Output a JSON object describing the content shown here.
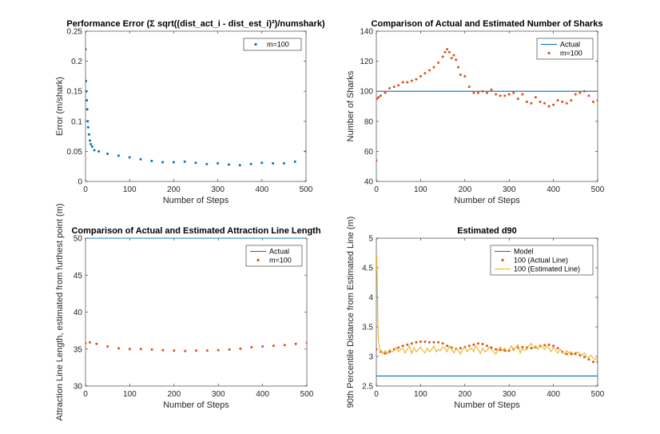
{
  "chart_data": [
    {
      "type": "scatter",
      "title": "Performance Error (Σ sqrt((dist_act_i - dist_est_i)²)/numshark)",
      "xlabel": "Number of Steps",
      "ylabel": "Error (m/shark)",
      "xlim": [
        0,
        500
      ],
      "ylim": [
        0,
        0.25
      ],
      "xticks": [
        "0",
        "100",
        "200",
        "300",
        "400",
        "500"
      ],
      "yticks": [
        "0",
        "0.05",
        "0.1",
        "0.15",
        "0.2",
        "0.25"
      ],
      "grid": false,
      "legend_location": "top-right",
      "series": [
        {
          "name": "m=100",
          "color": "#0072BD",
          "marker": "dot",
          "x": [
            0,
            1,
            2,
            3,
            4,
            5,
            6,
            8,
            10,
            12,
            15,
            20,
            30,
            50,
            75,
            100,
            125,
            150,
            175,
            200,
            225,
            250,
            275,
            300,
            325,
            350,
            375,
            400,
            425,
            450,
            475,
            500
          ],
          "y": [
            0.22,
            0.167,
            0.15,
            0.135,
            0.12,
            0.1,
            0.09,
            0.078,
            0.068,
            0.062,
            0.058,
            0.052,
            0.05,
            0.046,
            0.043,
            0.04,
            0.037,
            0.034,
            0.032,
            0.032,
            0.033,
            0.031,
            0.029,
            0.03,
            0.028,
            0.027,
            0.029,
            0.031,
            0.03,
            0.03,
            0.033,
            0.05
          ]
        }
      ]
    },
    {
      "type": "scatter",
      "title": "Comparison of Actual and Estimated Number of Sharks",
      "xlabel": "Number of Steps",
      "ylabel": "Number of Sharks",
      "xlim": [
        0,
        500
      ],
      "ylim": [
        40,
        140
      ],
      "xticks": [
        "0",
        "100",
        "200",
        "300",
        "400",
        "500"
      ],
      "yticks": [
        "40",
        "60",
        "80",
        "100",
        "120",
        "140"
      ],
      "grid": false,
      "legend_location": "top-right",
      "series": [
        {
          "name": "Actual",
          "color": "#0072BD",
          "style": "line",
          "x": [
            0,
            500
          ],
          "y": [
            100,
            100
          ]
        },
        {
          "name": "m=100",
          "color": "#D95319",
          "marker": "dot",
          "x": [
            0,
            1,
            5,
            10,
            20,
            30,
            40,
            50,
            60,
            70,
            80,
            90,
            100,
            110,
            120,
            130,
            140,
            150,
            155,
            160,
            165,
            170,
            175,
            180,
            185,
            190,
            200,
            210,
            220,
            230,
            240,
            250,
            260,
            270,
            280,
            290,
            300,
            310,
            320,
            330,
            340,
            350,
            360,
            370,
            380,
            390,
            400,
            410,
            420,
            430,
            440,
            450,
            460,
            470,
            480,
            490,
            500
          ],
          "y": [
            54,
            95,
            96,
            97,
            99,
            102,
            103,
            104,
            106,
            106,
            107,
            108,
            110,
            112,
            114,
            116,
            119,
            123,
            126,
            128,
            126,
            122,
            124,
            121,
            116,
            111,
            110,
            103,
            99,
            99,
            100,
            99,
            101,
            98,
            97,
            97,
            98,
            99,
            95,
            98,
            93,
            92,
            96,
            93,
            92,
            90,
            91,
            94,
            93,
            92,
            94,
            98,
            99,
            100,
            97,
            93,
            94
          ]
        }
      ]
    },
    {
      "type": "line",
      "title": "Comparison of Actual and Estimated Attraction Line Length",
      "xlabel": "Number of Steps",
      "ylabel": "Attraction Line Length, estimated from furthest point (m)",
      "xlim": [
        0,
        500
      ],
      "ylim": [
        30,
        50
      ],
      "xticks": [
        "0",
        "100",
        "200",
        "300",
        "400",
        "500"
      ],
      "yticks": [
        "30",
        "35",
        "40",
        "45",
        "50"
      ],
      "grid": false,
      "legend_location": "top-right",
      "series": [
        {
          "name": "Actual",
          "color": "#0072BD",
          "style": "line",
          "x": [
            0,
            500
          ],
          "y": [
            50,
            50
          ]
        },
        {
          "name": "m=100",
          "color": "#D95319",
          "marker": "dot",
          "x": [
            0,
            10,
            25,
            50,
            75,
            100,
            125,
            150,
            175,
            200,
            225,
            250,
            275,
            300,
            325,
            350,
            375,
            400,
            425,
            450,
            475,
            500
          ],
          "y": [
            35.8,
            35.9,
            35.7,
            35.35,
            35.1,
            35.0,
            35.0,
            34.95,
            34.85,
            34.8,
            34.75,
            34.8,
            34.8,
            34.85,
            34.95,
            35.05,
            35.25,
            35.35,
            35.45,
            35.55,
            35.7,
            35.85
          ]
        }
      ]
    },
    {
      "type": "line",
      "title": "Estimated d90",
      "xlabel": "Number of Steps",
      "ylabel": "90th Percentile Distance from Estimated Line (m)",
      "xlim": [
        0,
        500
      ],
      "ylim": [
        2.5,
        5
      ],
      "xticks": [
        "0",
        "100",
        "200",
        "300",
        "400",
        "500"
      ],
      "yticks": [
        "2.5",
        "3",
        "3.5",
        "4",
        "4.5",
        "5"
      ],
      "grid": false,
      "legend_location": "top-right",
      "series": [
        {
          "name": "Model",
          "color": "#0072BD",
          "style": "line",
          "x": [
            0,
            500
          ],
          "y": [
            2.67,
            2.67
          ]
        },
        {
          "name": "100 (Actual Line)",
          "color": "#D95319",
          "marker": "dot",
          "x": [
            0,
            10,
            20,
            30,
            40,
            50,
            60,
            70,
            80,
            90,
            100,
            110,
            120,
            130,
            140,
            150,
            160,
            170,
            180,
            190,
            200,
            210,
            220,
            230,
            240,
            250,
            260,
            270,
            280,
            290,
            300,
            310,
            320,
            330,
            340,
            350,
            360,
            370,
            380,
            390,
            400,
            410,
            420,
            430,
            440,
            450,
            460,
            470,
            480,
            490,
            500
          ],
          "y": [
            3.12,
            3.08,
            3.05,
            3.08,
            3.12,
            3.15,
            3.18,
            3.2,
            3.22,
            3.24,
            3.25,
            3.25,
            3.24,
            3.24,
            3.24,
            3.22,
            3.18,
            3.15,
            3.13,
            3.14,
            3.16,
            3.18,
            3.2,
            3.22,
            3.21,
            3.18,
            3.15,
            3.12,
            3.11,
            3.1,
            3.1,
            3.12,
            3.15,
            3.16,
            3.15,
            3.14,
            3.16,
            3.18,
            3.19,
            3.2,
            3.18,
            3.14,
            3.08,
            3.04,
            3.04,
            3.05,
            3.02,
            2.99,
            2.95,
            2.91,
            2.91
          ]
        },
        {
          "name": "100 (Estimated Line)",
          "color": "#EDB120",
          "style": "line",
          "x": [
            0,
            1,
            2,
            3,
            4,
            5,
            6,
            8,
            10,
            12,
            15,
            20,
            25,
            30,
            35,
            40,
            45,
            50,
            55,
            60,
            65,
            70,
            75,
            80,
            85,
            90,
            95,
            100,
            105,
            110,
            115,
            120,
            125,
            130,
            135,
            140,
            145,
            150,
            155,
            160,
            165,
            170,
            175,
            180,
            185,
            190,
            195,
            200,
            205,
            210,
            215,
            220,
            225,
            230,
            235,
            240,
            245,
            250,
            255,
            260,
            265,
            270,
            275,
            280,
            285,
            290,
            295,
            300,
            305,
            310,
            315,
            320,
            325,
            330,
            335,
            340,
            345,
            350,
            355,
            360,
            365,
            370,
            375,
            380,
            385,
            390,
            395,
            400,
            405,
            410,
            415,
            420,
            425,
            430,
            435,
            440,
            445,
            450,
            455,
            460,
            465,
            470,
            475,
            480,
            485,
            490,
            495,
            500
          ],
          "y": [
            4.45,
            4.7,
            4.3,
            3.8,
            3.4,
            3.25,
            3.2,
            3.12,
            3.08,
            3.1,
            3.05,
            3.1,
            3.05,
            3.12,
            3.08,
            3.1,
            3.15,
            3.08,
            3.12,
            3.14,
            3.06,
            3.12,
            3.18,
            3.05,
            3.15,
            3.08,
            3.12,
            3.16,
            3.1,
            3.06,
            3.14,
            3.08,
            3.12,
            3.18,
            3.08,
            3.12,
            3.1,
            3.16,
            3.14,
            3.08,
            3.18,
            3.12,
            3.06,
            3.14,
            3.1,
            3.04,
            3.12,
            3.16,
            3.08,
            3.12,
            3.14,
            3.08,
            3.18,
            3.12,
            3.05,
            3.14,
            3.08,
            3.1,
            3.16,
            3.12,
            3.08,
            3.04,
            3.12,
            3.16,
            3.1,
            3.14,
            3.08,
            3.12,
            3.18,
            3.1,
            3.16,
            3.2,
            3.06,
            3.14,
            3.1,
            3.12,
            3.18,
            3.22,
            3.14,
            3.18,
            3.12,
            3.2,
            3.16,
            3.12,
            3.18,
            3.14,
            3.08,
            3.16,
            3.1,
            3.06,
            3.12,
            3.08,
            3.04,
            3.1,
            3.06,
            3.08,
            3.04,
            3.02,
            3.08,
            3.04,
            3.02,
            3.06,
            3.0,
            2.98,
            3.02,
            2.97,
            2.95,
            2.98
          ]
        }
      ]
    }
  ]
}
